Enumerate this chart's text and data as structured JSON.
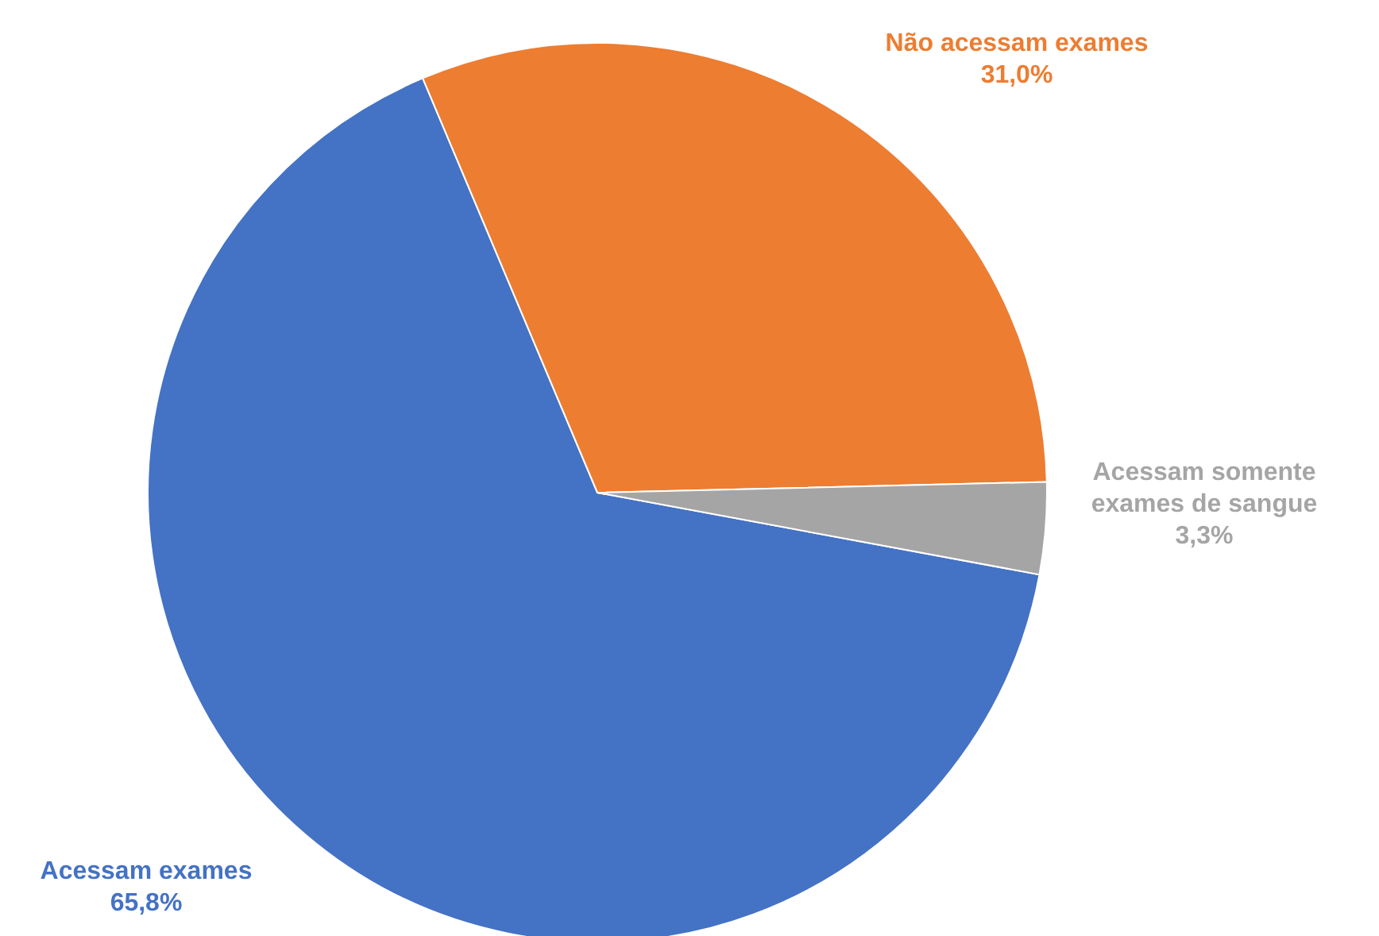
{
  "chart_data": {
    "type": "pie",
    "categories": [
      "Acessam exames",
      "Não acessam exames",
      "Acessam somente exames de sangue"
    ],
    "values": [
      65.8,
      31.0,
      3.3
    ],
    "colors": [
      "#4472c4",
      "#ed7d31",
      "#a5a5a5"
    ],
    "value_labels": [
      "65,8%",
      "31,0%",
      "3,3%"
    ]
  }
}
